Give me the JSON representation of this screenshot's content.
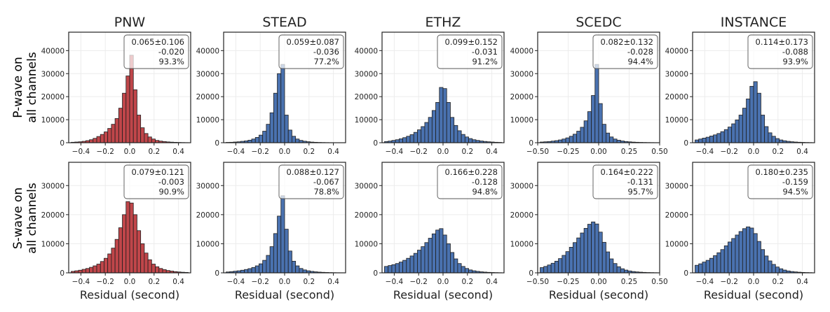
{
  "figure": {
    "row_labels": [
      [
        "P-wave on",
        "all channels"
      ],
      [
        "S-wave on",
        "all channels"
      ]
    ],
    "xlabel": "Residual (second)",
    "colors": {
      "pnw_bar": "#c0464a",
      "bar": "#4a72b0",
      "edge": "#1f1f1f",
      "grid": "#ececec",
      "box_edge": "#555555"
    }
  },
  "chart_data": [
    {
      "type": "bar",
      "panel": "P-PNW",
      "title": "PNW",
      "row": 0,
      "col": 0,
      "xlim": [
        -0.5,
        0.5
      ],
      "xticks": [
        -0.4,
        -0.2,
        0.0,
        0.2,
        0.4
      ],
      "xticklabels": [
        "−0.4",
        "−0.2",
        "0.0",
        "0.2",
        "0.4"
      ],
      "ylim": [
        0,
        48000
      ],
      "yticks": [
        0,
        10000,
        20000,
        30000,
        40000
      ],
      "yticklabels": [
        "0",
        "10000",
        "20000",
        "30000",
        "40000"
      ],
      "bin_width": 0.03,
      "color": "#c0464a",
      "bins_x": [
        -0.465,
        -0.435,
        -0.405,
        -0.375,
        -0.345,
        -0.315,
        -0.285,
        -0.255,
        -0.225,
        -0.195,
        -0.165,
        -0.135,
        -0.105,
        -0.075,
        -0.045,
        -0.015,
        0.015,
        0.045,
        0.075,
        0.105,
        0.135,
        0.165,
        0.195,
        0.225,
        0.255,
        0.285,
        0.315,
        0.345,
        0.375,
        0.405,
        0.435,
        0.465
      ],
      "values": [
        200,
        300,
        400,
        600,
        900,
        1300,
        1900,
        2700,
        3600,
        4700,
        6200,
        8000,
        10500,
        15000,
        21500,
        29000,
        38000,
        23000,
        12000,
        6500,
        4000,
        2500,
        1600,
        1000,
        700,
        500,
        350,
        250,
        180,
        120,
        80,
        50
      ],
      "stats": [
        "0.065±0.106",
        "-0.020",
        "93.3%"
      ]
    },
    {
      "type": "bar",
      "panel": "P-STEAD",
      "title": "STEAD",
      "row": 0,
      "col": 1,
      "xlim": [
        -0.5,
        0.5
      ],
      "xticks": [
        -0.4,
        -0.2,
        0.0,
        0.2,
        0.4
      ],
      "xticklabels": [
        "−0.4",
        "−0.2",
        "0.0",
        "0.2",
        "0.4"
      ],
      "ylim": [
        0,
        48000
      ],
      "yticks": [
        0,
        10000,
        20000,
        30000,
        40000
      ],
      "yticklabels": [
        "0",
        "10000",
        "20000",
        "30000",
        "40000"
      ],
      "bin_width": 0.03,
      "color": "#4a72b0",
      "bins_x": [
        -0.465,
        -0.435,
        -0.405,
        -0.375,
        -0.345,
        -0.315,
        -0.285,
        -0.255,
        -0.225,
        -0.195,
        -0.165,
        -0.135,
        -0.105,
        -0.075,
        -0.045,
        -0.015,
        0.015,
        0.045,
        0.075,
        0.105,
        0.135,
        0.165,
        0.195,
        0.225,
        0.255,
        0.285,
        0.315,
        0.345,
        0.375,
        0.405,
        0.435,
        0.465
      ],
      "values": [
        150,
        200,
        300,
        400,
        600,
        800,
        1100,
        1600,
        2300,
        3300,
        5000,
        8000,
        13000,
        21500,
        30000,
        34000,
        12000,
        5500,
        2800,
        1600,
        1000,
        650,
        420,
        280,
        190,
        130,
        90,
        60,
        40,
        30,
        20,
        10
      ],
      "stats": [
        "0.059±0.087",
        "-0.036",
        "77.2%"
      ]
    },
    {
      "type": "bar",
      "panel": "P-ETHZ",
      "title": "ETHZ",
      "row": 0,
      "col": 2,
      "xlim": [
        -0.5,
        0.5
      ],
      "xticks": [
        -0.4,
        -0.2,
        0.0,
        0.2,
        0.4
      ],
      "xticklabels": [
        "−0.4",
        "−0.2",
        "0.0",
        "0.2",
        "0.4"
      ],
      "ylim": [
        0,
        48000
      ],
      "yticks": [
        0,
        10000,
        20000,
        30000,
        40000
      ],
      "yticklabels": [
        "0",
        "10000",
        "20000",
        "30000",
        "40000"
      ],
      "bin_width": 0.03,
      "color": "#4a72b0",
      "bins_x": [
        -0.465,
        -0.435,
        -0.405,
        -0.375,
        -0.345,
        -0.315,
        -0.285,
        -0.255,
        -0.225,
        -0.195,
        -0.165,
        -0.135,
        -0.105,
        -0.075,
        -0.045,
        -0.015,
        0.015,
        0.045,
        0.075,
        0.105,
        0.135,
        0.165,
        0.195,
        0.225,
        0.255,
        0.285,
        0.315,
        0.345,
        0.375,
        0.405,
        0.435,
        0.465
      ],
      "values": [
        500,
        700,
        1000,
        1300,
        1700,
        2200,
        2800,
        3500,
        4500,
        5600,
        7000,
        8800,
        11000,
        14000,
        17500,
        24000,
        23500,
        17500,
        11000,
        7500,
        5200,
        3600,
        2500,
        1800,
        1300,
        1000,
        750,
        550,
        400,
        300,
        200,
        150
      ],
      "stats": [
        "0.099±0.152",
        "-0.031",
        "91.2%"
      ]
    },
    {
      "type": "bar",
      "panel": "P-SCEDC",
      "title": "SCEDC",
      "row": 0,
      "col": 3,
      "xlim": [
        -0.5,
        0.5
      ],
      "xticks": [
        -0.5,
        -0.25,
        0.0,
        0.25,
        0.5
      ],
      "xticklabels": [
        "−0.50",
        "−0.25",
        "0.00",
        "0.25",
        "0.50"
      ],
      "ylim": [
        0,
        48000
      ],
      "yticks": [
        0,
        10000,
        20000,
        30000,
        40000
      ],
      "yticklabels": [
        "0",
        "10000",
        "20000",
        "30000",
        "40000"
      ],
      "bin_width": 0.03,
      "color": "#4a72b0",
      "bins_x": [
        -0.465,
        -0.435,
        -0.405,
        -0.375,
        -0.345,
        -0.315,
        -0.285,
        -0.255,
        -0.225,
        -0.195,
        -0.165,
        -0.135,
        -0.105,
        -0.075,
        -0.045,
        -0.015,
        0.015,
        0.045,
        0.075,
        0.105,
        0.135,
        0.165,
        0.195,
        0.225,
        0.255,
        0.285,
        0.315,
        0.345,
        0.375,
        0.405,
        0.435,
        0.465
      ],
      "values": [
        300,
        400,
        500,
        700,
        900,
        1200,
        1600,
        2100,
        2800,
        3700,
        5000,
        6700,
        9500,
        13500,
        20500,
        34000,
        17000,
        8000,
        4200,
        2500,
        1600,
        1100,
        750,
        520,
        380,
        270,
        200,
        150,
        110,
        80,
        60,
        40
      ],
      "stats": [
        "0.082±0.132",
        "-0.028",
        "94.4%"
      ]
    },
    {
      "type": "bar",
      "panel": "P-INSTANCE",
      "title": "INSTANCE",
      "row": 0,
      "col": 4,
      "xlim": [
        -0.5,
        0.5
      ],
      "xticks": [
        -0.4,
        -0.2,
        0.0,
        0.2,
        0.4
      ],
      "xticklabels": [
        "−0.4",
        "−0.2",
        "0.0",
        "0.2",
        "0.4"
      ],
      "ylim": [
        0,
        48000
      ],
      "yticks": [
        0,
        10000,
        20000,
        30000,
        40000
      ],
      "yticklabels": [
        "0",
        "10000",
        "20000",
        "30000",
        "40000"
      ],
      "bin_width": 0.03,
      "color": "#4a72b0",
      "bins_x": [
        -0.465,
        -0.435,
        -0.405,
        -0.375,
        -0.345,
        -0.315,
        -0.285,
        -0.255,
        -0.225,
        -0.195,
        -0.165,
        -0.135,
        -0.105,
        -0.075,
        -0.045,
        -0.015,
        0.015,
        0.045,
        0.075,
        0.105,
        0.135,
        0.165,
        0.195,
        0.225,
        0.255,
        0.285,
        0.315,
        0.345,
        0.375,
        0.405,
        0.435,
        0.465
      ],
      "values": [
        1200,
        1600,
        2000,
        2400,
        2900,
        3400,
        4000,
        4800,
        5700,
        6800,
        8200,
        9900,
        12000,
        15000,
        19000,
        24500,
        26500,
        21500,
        12000,
        7000,
        4300,
        2800,
        1800,
        1200,
        850,
        600,
        420,
        300,
        210,
        150,
        100,
        70
      ],
      "stats": [
        "0.114±0.173",
        "-0.088",
        "93.9%"
      ]
    },
    {
      "type": "bar",
      "panel": "S-PNW",
      "title": "",
      "row": 1,
      "col": 0,
      "xlim": [
        -0.5,
        0.5
      ],
      "xticks": [
        -0.4,
        -0.2,
        0.0,
        0.2,
        0.4
      ],
      "xticklabels": [
        "−0.4",
        "−0.2",
        "0.0",
        "0.2",
        "0.4"
      ],
      "ylim": [
        0,
        38000
      ],
      "yticks": [
        0,
        10000,
        20000,
        30000
      ],
      "yticklabels": [
        "0",
        "10000",
        "20000",
        "30000"
      ],
      "bin_width": 0.03,
      "color": "#c0464a",
      "bins_x": [
        -0.465,
        -0.435,
        -0.405,
        -0.375,
        -0.345,
        -0.315,
        -0.285,
        -0.255,
        -0.225,
        -0.195,
        -0.165,
        -0.135,
        -0.105,
        -0.075,
        -0.045,
        -0.015,
        0.015,
        0.045,
        0.075,
        0.105,
        0.135,
        0.165,
        0.195,
        0.225,
        0.255,
        0.285,
        0.315,
        0.345,
        0.375,
        0.405,
        0.435,
        0.465
      ],
      "values": [
        500,
        700,
        900,
        1200,
        1500,
        1900,
        2400,
        3000,
        3900,
        5000,
        6500,
        8500,
        11500,
        15500,
        20000,
        24500,
        24000,
        20000,
        14500,
        10000,
        6800,
        4500,
        3000,
        2100,
        1500,
        1100,
        800,
        600,
        420,
        300,
        210,
        150
      ],
      "stats": [
        "0.079±0.121",
        "-0.003",
        "90.9%"
      ]
    },
    {
      "type": "bar",
      "panel": "S-STEAD",
      "title": "",
      "row": 1,
      "col": 1,
      "xlim": [
        -0.5,
        0.5
      ],
      "xticks": [
        -0.4,
        -0.2,
        0.0,
        0.2,
        0.4
      ],
      "xticklabels": [
        "−0.4",
        "−0.2",
        "0.0",
        "0.2",
        "0.4"
      ],
      "ylim": [
        0,
        38000
      ],
      "yticks": [
        0,
        10000,
        20000,
        30000
      ],
      "yticklabels": [
        "0",
        "10000",
        "20000",
        "30000"
      ],
      "bin_width": 0.03,
      "color": "#4a72b0",
      "bins_x": [
        -0.465,
        -0.435,
        -0.405,
        -0.375,
        -0.345,
        -0.315,
        -0.285,
        -0.255,
        -0.225,
        -0.195,
        -0.165,
        -0.135,
        -0.105,
        -0.075,
        -0.045,
        -0.015,
        0.015,
        0.045,
        0.075,
        0.105,
        0.135,
        0.165,
        0.195,
        0.225,
        0.255,
        0.285,
        0.315,
        0.345,
        0.375,
        0.405,
        0.435,
        0.465
      ],
      "values": [
        300,
        400,
        550,
        700,
        900,
        1150,
        1450,
        1850,
        2400,
        3100,
        4300,
        6000,
        9000,
        13500,
        19500,
        26500,
        15000,
        7500,
        4000,
        2400,
        1500,
        1000,
        700,
        500,
        350,
        250,
        180,
        130,
        90,
        60,
        40,
        30
      ],
      "stats": [
        "0.088±0.127",
        "-0.067",
        "78.8%"
      ]
    },
    {
      "type": "bar",
      "panel": "S-ETHZ",
      "title": "",
      "row": 1,
      "col": 2,
      "xlim": [
        -0.5,
        0.5
      ],
      "xticks": [
        -0.4,
        -0.2,
        0.0,
        0.2,
        0.4
      ],
      "xticklabels": [
        "−0.4",
        "−0.2",
        "0.0",
        "0.2",
        "0.4"
      ],
      "ylim": [
        0,
        38000
      ],
      "yticks": [
        0,
        10000,
        20000,
        30000
      ],
      "yticklabels": [
        "0",
        "10000",
        "20000",
        "30000"
      ],
      "bin_width": 0.03,
      "color": "#4a72b0",
      "bins_x": [
        -0.465,
        -0.435,
        -0.405,
        -0.375,
        -0.345,
        -0.315,
        -0.285,
        -0.255,
        -0.225,
        -0.195,
        -0.165,
        -0.135,
        -0.105,
        -0.075,
        -0.045,
        -0.015,
        0.015,
        0.045,
        0.075,
        0.105,
        0.135,
        0.165,
        0.195,
        0.225,
        0.255,
        0.285,
        0.315,
        0.345,
        0.375,
        0.405,
        0.435,
        0.465
      ],
      "values": [
        2200,
        2500,
        2800,
        3200,
        3700,
        4300,
        5000,
        5800,
        6700,
        7800,
        9000,
        10400,
        11900,
        13400,
        14700,
        15200,
        13000,
        10000,
        7000,
        4800,
        3200,
        2200,
        1500,
        1000,
        700,
        500,
        350,
        250,
        170,
        120,
        80,
        50
      ],
      "stats": [
        "0.166±0.228",
        "-0.128",
        "94.8%"
      ]
    },
    {
      "type": "bar",
      "panel": "S-SCEDC",
      "title": "",
      "row": 1,
      "col": 3,
      "xlim": [
        -0.5,
        0.5
      ],
      "xticks": [
        -0.5,
        -0.25,
        0.0,
        0.25,
        0.5
      ],
      "xticklabels": [
        "−0.50",
        "−0.25",
        "0.00",
        "0.25",
        "0.50"
      ],
      "ylim": [
        0,
        38000
      ],
      "yticks": [
        0,
        10000,
        20000,
        30000
      ],
      "yticklabels": [
        "0",
        "10000",
        "20000",
        "30000"
      ],
      "bin_width": 0.03,
      "color": "#4a72b0",
      "bins_x": [
        -0.465,
        -0.435,
        -0.405,
        -0.375,
        -0.345,
        -0.315,
        -0.285,
        -0.255,
        -0.225,
        -0.195,
        -0.165,
        -0.135,
        -0.105,
        -0.075,
        -0.045,
        -0.015,
        0.015,
        0.045,
        0.075,
        0.105,
        0.135,
        0.165,
        0.195,
        0.225,
        0.255,
        0.285,
        0.315,
        0.345,
        0.375,
        0.405,
        0.435,
        0.465
      ],
      "values": [
        1800,
        2200,
        2700,
        3300,
        4000,
        4900,
        6000,
        7300,
        8800,
        10400,
        12000,
        13700,
        15300,
        16700,
        17500,
        16800,
        14000,
        10500,
        7200,
        4800,
        3200,
        2100,
        1400,
        950,
        650,
        450,
        320,
        230,
        160,
        110,
        80,
        50
      ],
      "stats": [
        "0.164±0.222",
        "-0.131",
        "95.7%"
      ]
    },
    {
      "type": "bar",
      "panel": "S-INSTANCE",
      "title": "",
      "row": 1,
      "col": 4,
      "xlim": [
        -0.5,
        0.5
      ],
      "xticks": [
        -0.4,
        -0.2,
        0.0,
        0.2,
        0.4
      ],
      "xticklabels": [
        "−0.4",
        "−0.2",
        "0.0",
        "0.2",
        "0.4"
      ],
      "ylim": [
        0,
        38000
      ],
      "yticks": [
        0,
        10000,
        20000,
        30000
      ],
      "yticklabels": [
        "0",
        "10000",
        "20000",
        "30000"
      ],
      "bin_width": 0.03,
      "color": "#4a72b0",
      "bins_x": [
        -0.465,
        -0.435,
        -0.405,
        -0.375,
        -0.345,
        -0.315,
        -0.285,
        -0.255,
        -0.225,
        -0.195,
        -0.165,
        -0.135,
        -0.105,
        -0.075,
        -0.045,
        -0.015,
        0.015,
        0.045,
        0.075,
        0.105,
        0.135,
        0.165,
        0.195,
        0.225,
        0.255,
        0.285,
        0.315,
        0.345,
        0.375,
        0.405,
        0.435,
        0.465
      ],
      "values": [
        2600,
        3100,
        3700,
        4300,
        5000,
        5900,
        6900,
        8000,
        9300,
        10600,
        11800,
        13000,
        14200,
        15200,
        15800,
        15400,
        13500,
        10800,
        8000,
        5800,
        4100,
        2900,
        2000,
        1400,
        950,
        650,
        450,
        320,
        220,
        150,
        100,
        70
      ],
      "stats": [
        "0.180±0.235",
        "-0.159",
        "94.5%"
      ]
    }
  ]
}
